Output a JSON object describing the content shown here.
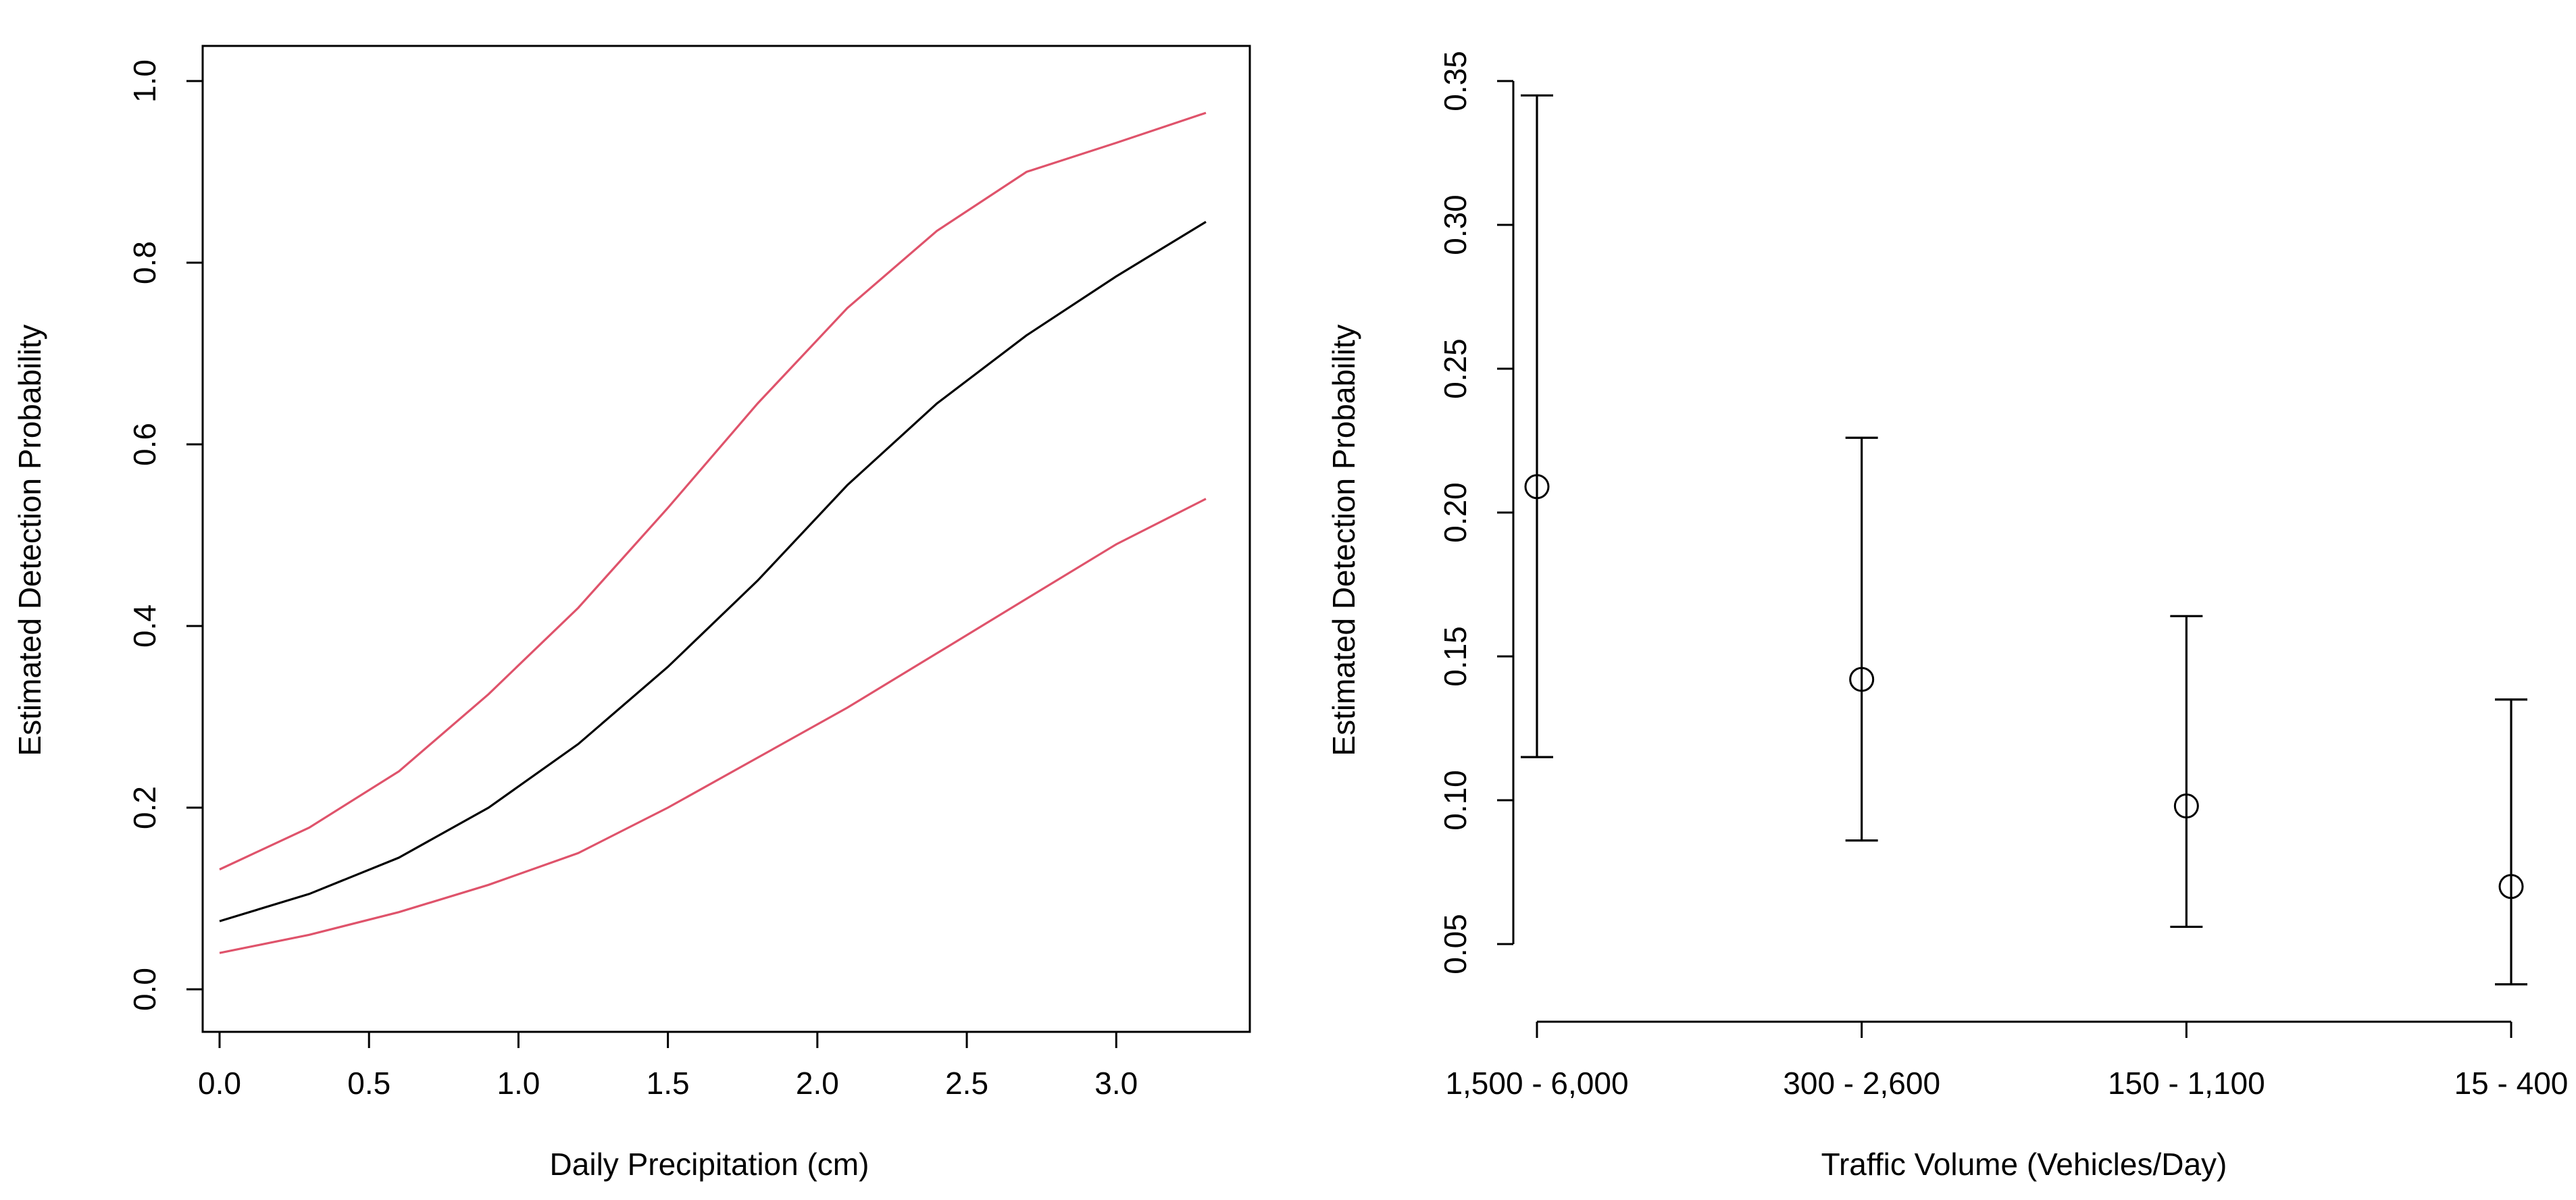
{
  "chart_data": [
    {
      "type": "line",
      "title": "",
      "xlabel": "Daily Precipitation (cm)",
      "ylabel": "Estimated Detection Probability",
      "xlim": [
        0.0,
        3.3
      ],
      "ylim": [
        0.0,
        1.0
      ],
      "x_ticks": [
        "0.0",
        "0.5",
        "1.0",
        "1.5",
        "2.0",
        "2.5",
        "3.0"
      ],
      "y_ticks": [
        "0.0",
        "0.2",
        "0.4",
        "0.6",
        "0.8",
        "1.0"
      ],
      "box": true,
      "grid": false,
      "x": [
        0.0,
        0.3,
        0.6,
        0.9,
        1.2,
        1.5,
        1.8,
        2.1,
        2.4,
        2.7,
        3.0,
        3.3
      ],
      "series": [
        {
          "role": "estimate",
          "color": "#000000",
          "values": [
            0.075,
            0.105,
            0.145,
            0.2,
            0.27,
            0.355,
            0.45,
            0.555,
            0.645,
            0.72,
            0.785,
            0.845
          ]
        },
        {
          "role": "upper",
          "color": "#df536b",
          "values": [
            0.132,
            0.178,
            0.24,
            0.325,
            0.42,
            0.53,
            0.645,
            0.75,
            0.835,
            0.9,
            0.932,
            0.965
          ]
        },
        {
          "role": "lower",
          "color": "#df536b",
          "values": [
            0.04,
            0.06,
            0.085,
            0.115,
            0.15,
            0.2,
            0.255,
            0.31,
            0.37,
            0.43,
            0.49,
            0.54
          ]
        }
      ]
    },
    {
      "type": "errorbar",
      "title": "",
      "xlabel": "Traffic Volume (Vehicles/Day)",
      "ylabel": "Estimated Detection Probability",
      "ylim": [
        0.035,
        0.345
      ],
      "y_ticks": [
        "0.05",
        "0.10",
        "0.15",
        "0.20",
        "0.25",
        "0.30",
        "0.35"
      ],
      "box": false,
      "grid": false,
      "categories": [
        "1,500 - 6,000",
        "300 - 2,600",
        "150 - 1,100",
        "15 - 400"
      ],
      "estimate": [
        0.209,
        0.142,
        0.098,
        0.07
      ],
      "lower": [
        0.115,
        0.086,
        0.056,
        0.036
      ],
      "upper": [
        0.345,
        0.226,
        0.164,
        0.135
      ]
    }
  ]
}
